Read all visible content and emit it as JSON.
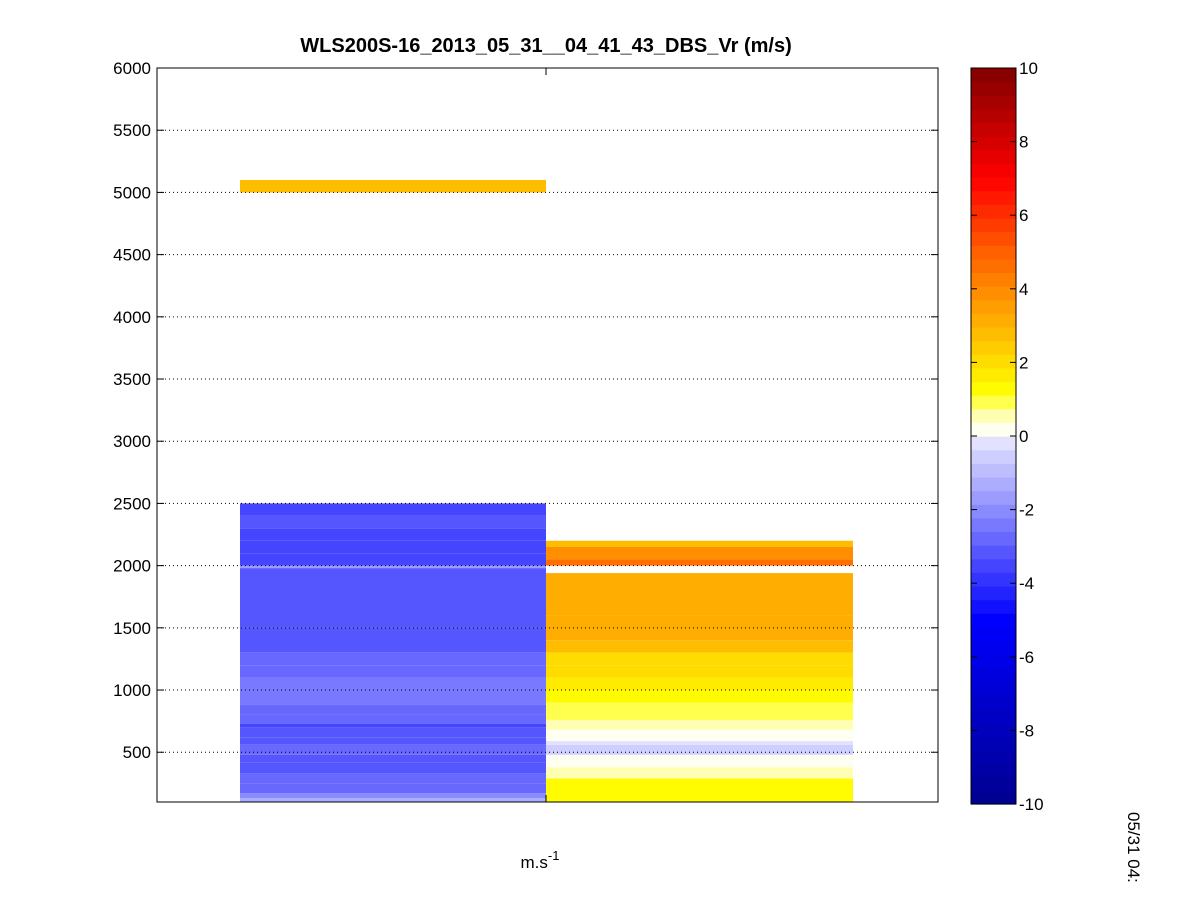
{
  "chart_data": {
    "type": "heatmap",
    "title": "WLS200S-16_2013_05_31__04_41_43_DBS_Vr (m/s)",
    "xlabel": "m.s",
    "xlabel_superscript": "-1",
    "ylabel": "",
    "ylim": [
      100,
      6000
    ],
    "yticks": [
      "500",
      "1000",
      "1500",
      "2000",
      "2500",
      "3000",
      "3500",
      "4000",
      "4500",
      "5000",
      "5500",
      "6000"
    ],
    "grid": "horizontal dotted",
    "colorbar": {
      "range": [
        -10,
        10
      ],
      "ticks": [
        "-10",
        "-8",
        "-6",
        "-4",
        "-2",
        "0",
        "2",
        "4",
        "6",
        "8",
        "10"
      ],
      "colors": {
        "dark_blue": "#00008f",
        "blue": "#0000ff",
        "light": "#ffffff",
        "yellow": "#ffff00",
        "red": "#ff0000",
        "dark_red": "#800000"
      }
    },
    "side_label": "05/31 04:",
    "columns": [
      {
        "name": "",
        "segments": [
          {
            "y0": 100,
            "y1": 130,
            "value": -1.4
          },
          {
            "y0": 130,
            "y1": 170,
            "value": -2.0
          },
          {
            "y0": 170,
            "y1": 250,
            "value": -2.6
          },
          {
            "y0": 250,
            "y1": 330,
            "value": -2.8
          },
          {
            "y0": 330,
            "y1": 420,
            "value": -3.0
          },
          {
            "y0": 420,
            "y1": 480,
            "value": -3.2
          },
          {
            "y0": 480,
            "y1": 560,
            "value": -2.9
          },
          {
            "y0": 560,
            "y1": 620,
            "value": -3.3
          },
          {
            "y0": 620,
            "y1": 700,
            "value": -3.0
          },
          {
            "y0": 700,
            "y1": 730,
            "value": -3.4
          },
          {
            "y0": 730,
            "y1": 800,
            "value": -2.9
          },
          {
            "y0": 800,
            "y1": 880,
            "value": -2.7
          },
          {
            "y0": 880,
            "y1": 1000,
            "value": -2.5
          },
          {
            "y0": 1000,
            "y1": 1100,
            "value": -2.3
          },
          {
            "y0": 1100,
            "y1": 1200,
            "value": -2.6
          },
          {
            "y0": 1200,
            "y1": 1300,
            "value": -2.8
          },
          {
            "y0": 1300,
            "y1": 1500,
            "value": -3.1
          },
          {
            "y0": 1500,
            "y1": 1800,
            "value": -3.2
          },
          {
            "y0": 1800,
            "y1": 1980,
            "value": -3.3
          },
          {
            "y0": 1980,
            "y1": 2000,
            "value": -1.5
          },
          {
            "y0": 2000,
            "y1": 2100,
            "value": -3.4
          },
          {
            "y0": 2100,
            "y1": 2200,
            "value": -3.5
          },
          {
            "y0": 2200,
            "y1": 2300,
            "value": -3.6
          },
          {
            "y0": 2300,
            "y1": 2400,
            "value": -3.3
          },
          {
            "y0": 2400,
            "y1": 2500,
            "value": -3.6
          },
          {
            "y0": 5000,
            "y1": 5100,
            "value": 2.6
          }
        ]
      },
      {
        "name": "",
        "segments": [
          {
            "y0": 100,
            "y1": 180,
            "value": 1.2
          },
          {
            "y0": 180,
            "y1": 290,
            "value": 1.4
          },
          {
            "y0": 290,
            "y1": 380,
            "value": 0.5
          },
          {
            "y0": 380,
            "y1": 480,
            "value": 0.05
          },
          {
            "y0": 480,
            "y1": 560,
            "value": -0.5
          },
          {
            "y0": 560,
            "y1": 590,
            "value": -0.2
          },
          {
            "y0": 590,
            "y1": 680,
            "value": 0.05
          },
          {
            "y0": 680,
            "y1": 760,
            "value": 0.5
          },
          {
            "y0": 760,
            "y1": 900,
            "value": 1.0
          },
          {
            "y0": 900,
            "y1": 1000,
            "value": 1.3
          },
          {
            "y0": 1000,
            "y1": 1100,
            "value": 1.6
          },
          {
            "y0": 1100,
            "y1": 1200,
            "value": 1.9
          },
          {
            "y0": 1200,
            "y1": 1300,
            "value": 2.2
          },
          {
            "y0": 1300,
            "y1": 1400,
            "value": 2.6
          },
          {
            "y0": 1400,
            "y1": 1600,
            "value": 3.0
          },
          {
            "y0": 1600,
            "y1": 1800,
            "value": 3.2
          },
          {
            "y0": 1800,
            "y1": 1940,
            "value": 3.0
          },
          {
            "y0": 2000,
            "y1": 2050,
            "value": 4.6
          },
          {
            "y0": 2050,
            "y1": 2150,
            "value": 3.9
          },
          {
            "y0": 2150,
            "y1": 2200,
            "value": 2.6
          }
        ]
      }
    ]
  }
}
